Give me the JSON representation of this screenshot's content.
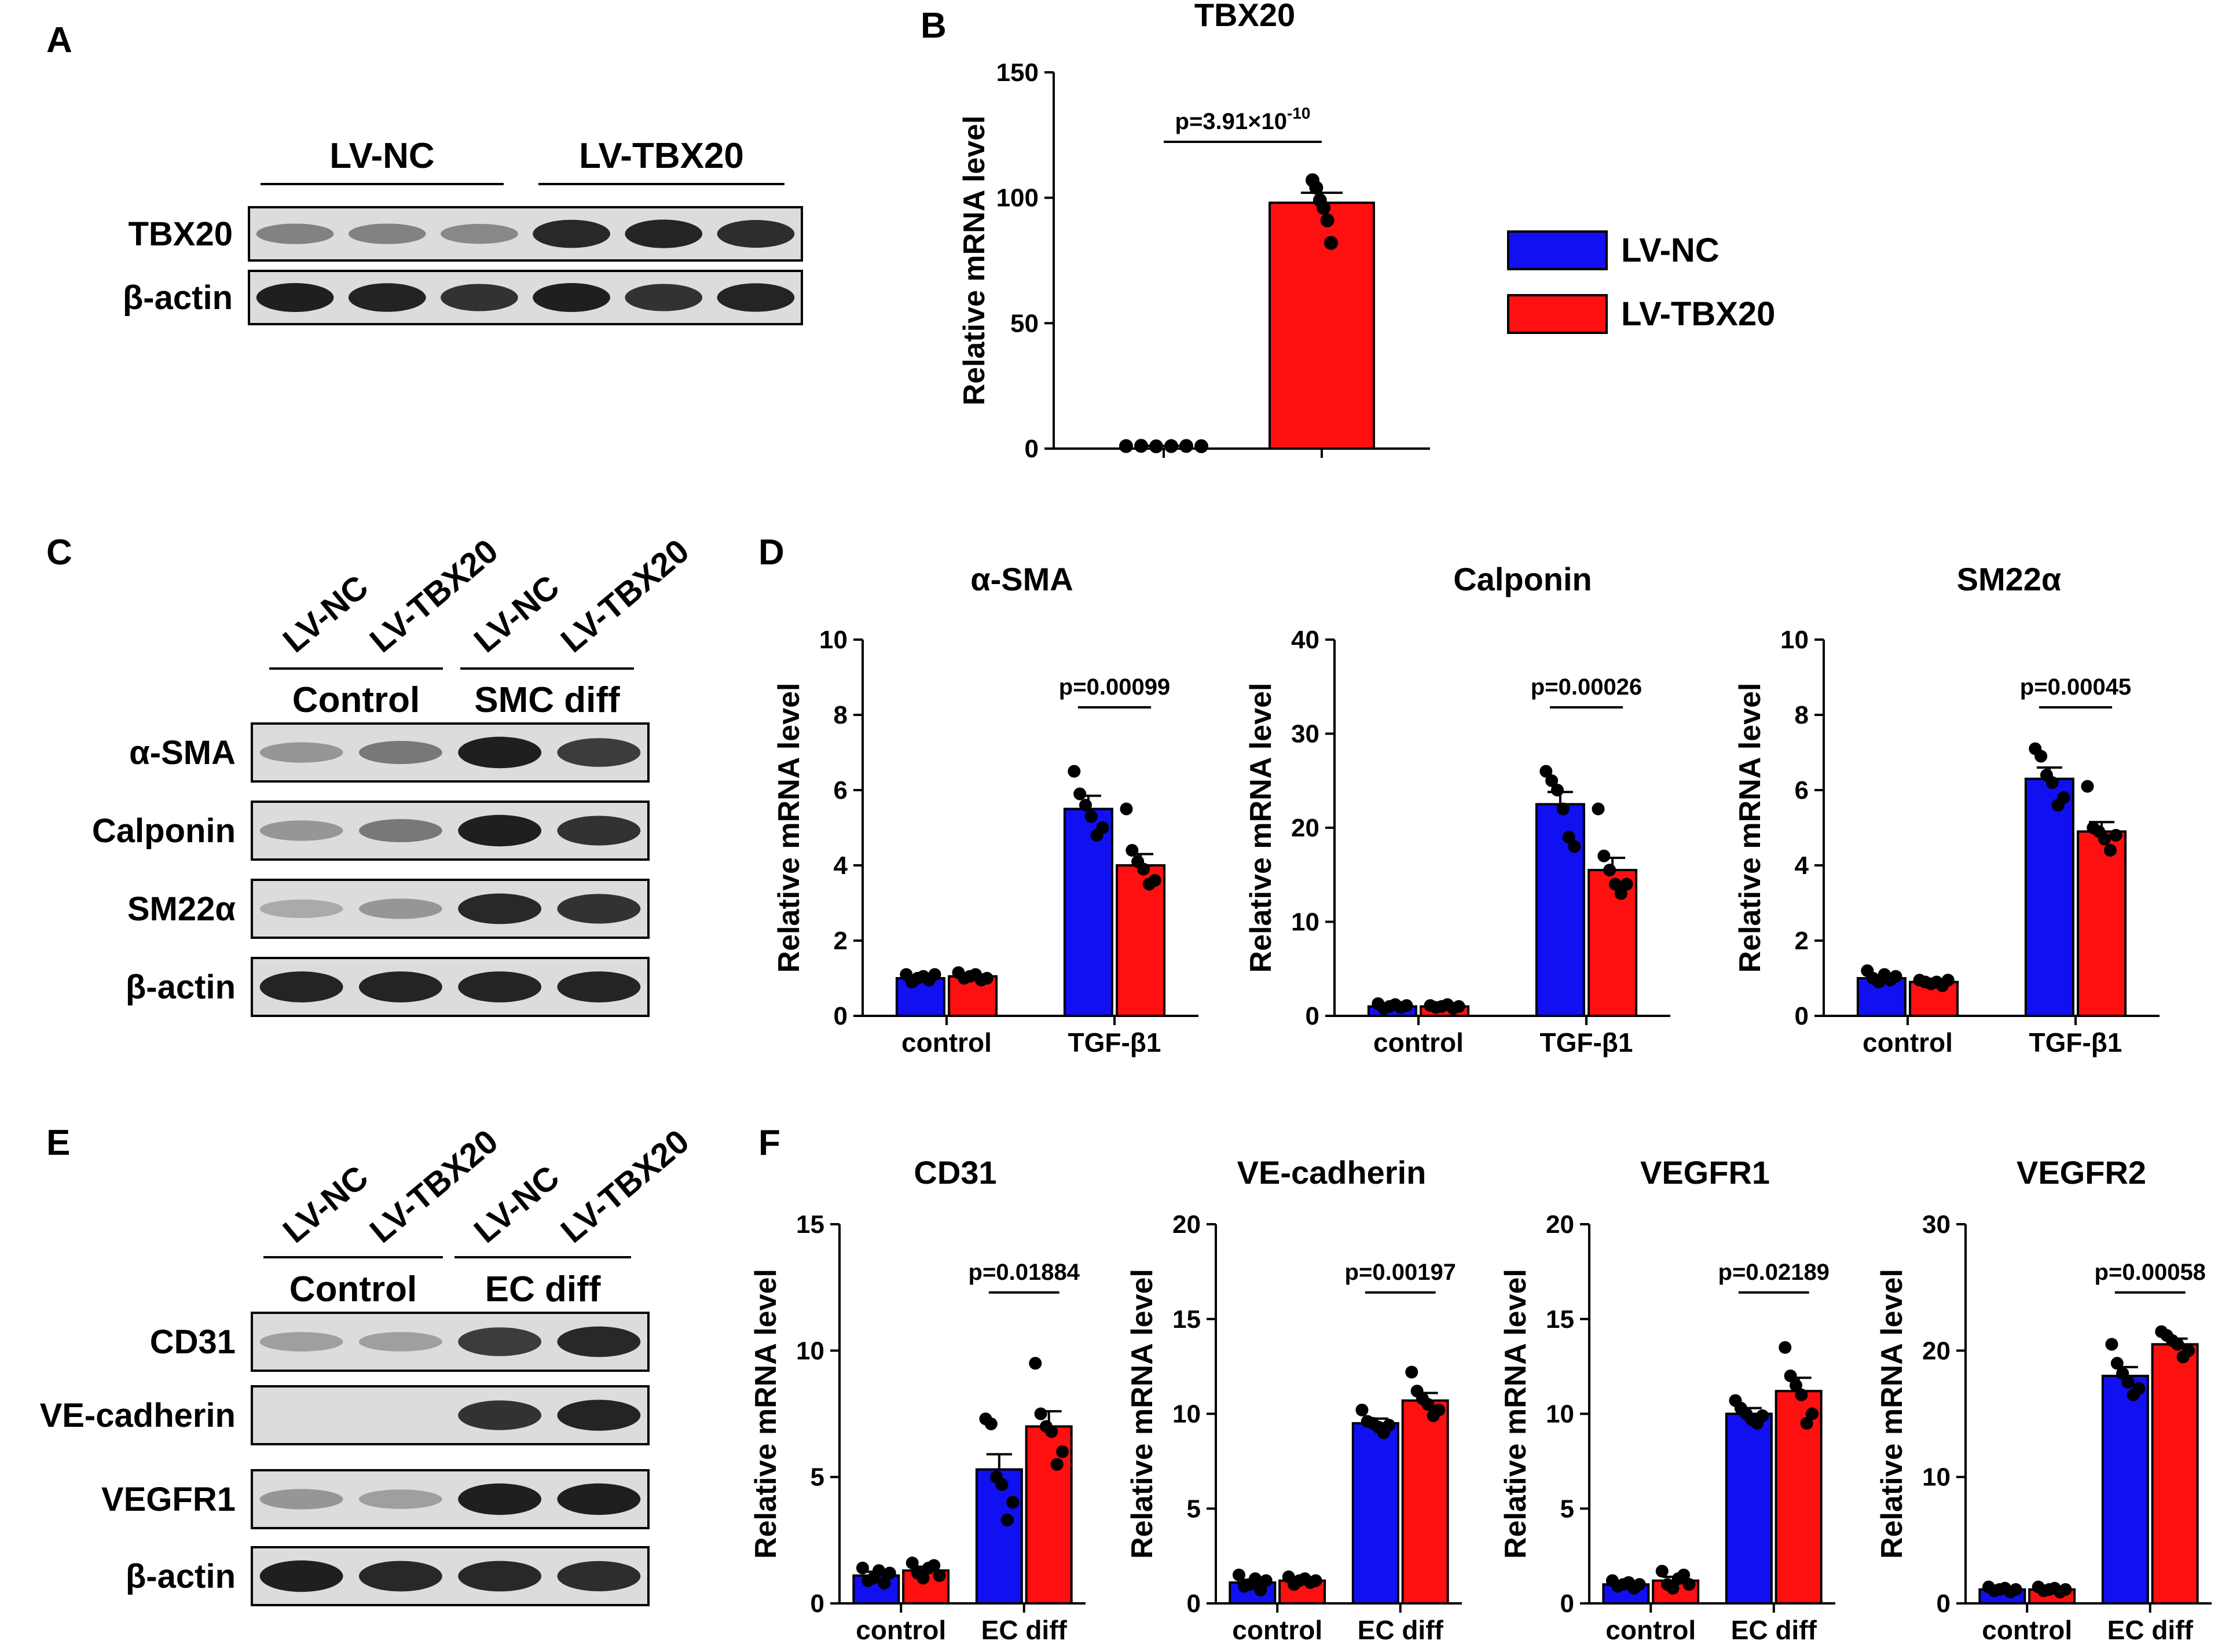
{
  "colors": {
    "lv_nc": "#1010F0",
    "lv_tbx20": "#FF1010",
    "band_dark": "#141414",
    "blot_bg": "#DCDCDC"
  },
  "panel_letters": [
    "A",
    "B",
    "C",
    "D",
    "E",
    "F"
  ],
  "legend": {
    "items": [
      {
        "label": "LV-NC",
        "color": "#1010F0"
      },
      {
        "label": "LV-TBX20",
        "color": "#FF1010"
      }
    ]
  },
  "panel_a": {
    "groups": [
      "LV-NC",
      "LV-TBX20"
    ],
    "rows": [
      {
        "label": "TBX20",
        "intensity": [
          0.45,
          0.45,
          0.42,
          0.9,
          0.92,
          0.88
        ]
      },
      {
        "label": "β-actin",
        "intensity": [
          0.95,
          0.93,
          0.85,
          0.95,
          0.85,
          0.92
        ]
      }
    ]
  },
  "panel_c": {
    "lanes": [
      "LV-NC",
      "LV-TBX20",
      "LV-NC",
      "LV-TBX20"
    ],
    "groups": [
      "Control",
      "SMC diff"
    ],
    "rows": [
      {
        "label": "α-SMA",
        "intensity": [
          0.35,
          0.5,
          0.95,
          0.8
        ]
      },
      {
        "label": "Calponin",
        "intensity": [
          0.35,
          0.5,
          0.95,
          0.85
        ]
      },
      {
        "label": "SM22α",
        "intensity": [
          0.25,
          0.35,
          0.9,
          0.85
        ]
      },
      {
        "label": "β-actin",
        "intensity": [
          0.92,
          0.92,
          0.92,
          0.92
        ]
      }
    ]
  },
  "panel_e": {
    "lanes": [
      "LV-NC",
      "LV-TBX20",
      "LV-NC",
      "LV-TBX20"
    ],
    "groups": [
      "Control",
      "EC diff"
    ],
    "rows": [
      {
        "label": "CD31",
        "intensity": [
          0.3,
          0.3,
          0.8,
          0.9
        ]
      },
      {
        "label": "VE-cadherin",
        "intensity": [
          0.0,
          0.0,
          0.85,
          0.92
        ]
      },
      {
        "label": "VEGFR1",
        "intensity": [
          0.35,
          0.3,
          0.95,
          0.95
        ]
      },
      {
        "label": "β-actin",
        "intensity": [
          0.95,
          0.9,
          0.9,
          0.88
        ]
      }
    ]
  },
  "chart_data": [
    {
      "panel": "B",
      "type": "bar",
      "title": "TBX20",
      "ylabel": "Relative mRNA level",
      "xlabel": "",
      "ylim": [
        0,
        150
      ],
      "yticks": [
        0,
        50,
        100,
        150
      ],
      "categories": [
        ""
      ],
      "series": [
        {
          "name": "LV-NC",
          "values": [
            1.0
          ],
          "sem": [
            0.1
          ],
          "points": [
            [
              1.0,
              1.1,
              0.9,
              1.0,
              1.05,
              0.95
            ]
          ]
        },
        {
          "name": "LV-TBX20",
          "values": [
            98
          ],
          "sem": [
            4
          ],
          "points": [
            [
              107,
              104,
              99,
              96,
              91,
              82
            ]
          ]
        }
      ],
      "annotations": [
        {
          "text": "p=3.91×10",
          "sup": "-10",
          "category": 0
        }
      ]
    },
    {
      "panel": "D",
      "type": "bar",
      "title": "α-SMA",
      "ylabel": "Relative mRNA level",
      "xlabel": "",
      "ylim": [
        0,
        10
      ],
      "yticks": [
        0,
        2,
        4,
        6,
        8,
        10
      ],
      "categories": [
        "control",
        "TGF-β1"
      ],
      "series": [
        {
          "name": "LV-NC",
          "values": [
            1.0,
            5.5
          ],
          "sem": [
            0.06,
            0.35
          ],
          "points": [
            [
              1.1,
              0.9,
              1.0,
              1.05,
              0.95,
              1.1
            ],
            [
              6.5,
              5.9,
              5.6,
              5.3,
              4.8,
              5.0
            ]
          ]
        },
        {
          "name": "LV-TBX20",
          "values": [
            1.05,
            4.0
          ],
          "sem": [
            0.05,
            0.3
          ],
          "points": [
            [
              1.15,
              1.0,
              1.05,
              1.1,
              0.95,
              1.0
            ],
            [
              5.5,
              4.4,
              4.1,
              3.9,
              3.5,
              3.6
            ]
          ]
        }
      ],
      "annotations": [
        {
          "text": "p=0.00099",
          "category": 1
        }
      ]
    },
    {
      "panel": "D",
      "type": "bar",
      "title": "Calponin",
      "ylabel": "Relative mRNA level",
      "xlabel": "",
      "ylim": [
        0,
        40
      ],
      "yticks": [
        0,
        10,
        20,
        30,
        40
      ],
      "categories": [
        "control",
        "TGF-β1"
      ],
      "series": [
        {
          "name": "LV-NC",
          "values": [
            1.0,
            22.5
          ],
          "sem": [
            0.15,
            1.3
          ],
          "points": [
            [
              1.3,
              0.8,
              1.0,
              1.2,
              0.9,
              1.1
            ],
            [
              26.0,
              25.0,
              24.0,
              22.0,
              19.0,
              18.0
            ]
          ]
        },
        {
          "name": "LV-TBX20",
          "values": [
            1.0,
            15.5
          ],
          "sem": [
            0.1,
            1.3
          ],
          "points": [
            [
              1.1,
              0.9,
              1.0,
              1.2,
              0.8,
              1.0
            ],
            [
              22.0,
              17.0,
              15.5,
              14.0,
              13.0,
              14.0
            ]
          ]
        }
      ],
      "annotations": [
        {
          "text": "p=0.00026",
          "category": 1
        }
      ]
    },
    {
      "panel": "D",
      "type": "bar",
      "title": "SM22α",
      "ylabel": "Relative mRNA level",
      "xlabel": "",
      "ylim": [
        0,
        10
      ],
      "yticks": [
        0,
        2,
        4,
        6,
        8,
        10
      ],
      "categories": [
        "control",
        "TGF-β1"
      ],
      "series": [
        {
          "name": "LV-NC",
          "values": [
            1.0,
            6.3
          ],
          "sem": [
            0.07,
            0.3
          ],
          "points": [
            [
              1.2,
              1.0,
              0.9,
              1.1,
              0.95,
              1.05
            ],
            [
              7.1,
              6.9,
              6.4,
              6.2,
              5.6,
              5.8
            ]
          ]
        },
        {
          "name": "LV-TBX20",
          "values": [
            0.9,
            4.9
          ],
          "sem": [
            0.04,
            0.25
          ],
          "points": [
            [
              0.95,
              0.9,
              0.85,
              0.9,
              0.8,
              0.95
            ],
            [
              6.1,
              5.0,
              4.9,
              4.7,
              4.4,
              4.8
            ]
          ]
        }
      ],
      "annotations": [
        {
          "text": "p=0.00045",
          "category": 1
        }
      ]
    },
    {
      "panel": "F",
      "type": "bar",
      "title": "CD31",
      "ylabel": "Relative mRNA level",
      "xlabel": "",
      "ylim": [
        0,
        15
      ],
      "yticks": [
        0,
        5,
        10,
        15
      ],
      "categories": [
        "control",
        "EC diff"
      ],
      "series": [
        {
          "name": "LV-NC",
          "values": [
            1.1,
            5.3
          ],
          "sem": [
            0.15,
            0.6
          ],
          "points": [
            [
              1.4,
              0.9,
              1.0,
              1.3,
              0.8,
              1.2
            ],
            [
              7.3,
              7.1,
              5.0,
              4.7,
              3.3,
              4.0
            ]
          ]
        },
        {
          "name": "LV-TBX20",
          "values": [
            1.3,
            7.0
          ],
          "sem": [
            0.15,
            0.6
          ],
          "points": [
            [
              1.6,
              1.2,
              1.0,
              1.4,
              1.5,
              1.1
            ],
            [
              9.5,
              7.5,
              7.0,
              6.8,
              5.5,
              6.0
            ]
          ]
        }
      ],
      "annotations": [
        {
          "text": "p=0.01884",
          "category": 1
        }
      ]
    },
    {
      "panel": "F",
      "type": "bar",
      "title": "VE-cadherin",
      "ylabel": "Relative mRNA level",
      "xlabel": "",
      "ylim": [
        0,
        20
      ],
      "yticks": [
        0,
        5,
        10,
        15,
        20
      ],
      "categories": [
        "control",
        "EC diff"
      ],
      "series": [
        {
          "name": "LV-NC",
          "values": [
            1.1,
            9.5
          ],
          "sem": [
            0.15,
            0.25
          ],
          "points": [
            [
              1.5,
              0.9,
              1.0,
              1.3,
              0.7,
              1.2
            ],
            [
              10.2,
              9.6,
              9.5,
              9.3,
              9.0,
              9.4
            ]
          ]
        },
        {
          "name": "LV-TBX20",
          "values": [
            1.2,
            10.7
          ],
          "sem": [
            0.1,
            0.4
          ],
          "points": [
            [
              1.4,
              1.0,
              1.2,
              1.3,
              1.1,
              1.2
            ],
            [
              12.2,
              11.2,
              10.8,
              10.5,
              9.9,
              10.2
            ]
          ]
        }
      ],
      "annotations": [
        {
          "text": "p=0.00197",
          "category": 1
        }
      ]
    },
    {
      "panel": "F",
      "type": "bar",
      "title": "VEGFR1",
      "ylabel": "Relative mRNA level",
      "xlabel": "",
      "ylim": [
        0,
        20
      ],
      "yticks": [
        0,
        5,
        10,
        15,
        20
      ],
      "categories": [
        "control",
        "EC diff"
      ],
      "series": [
        {
          "name": "LV-NC",
          "values": [
            1.0,
            10.0
          ],
          "sem": [
            0.1,
            0.3
          ],
          "points": [
            [
              1.2,
              0.9,
              1.0,
              1.1,
              0.8,
              1.0
            ],
            [
              10.7,
              10.3,
              10.0,
              9.7,
              9.5,
              9.9
            ]
          ]
        },
        {
          "name": "LV-TBX20",
          "values": [
            1.2,
            11.2
          ],
          "sem": [
            0.2,
            0.7
          ],
          "points": [
            [
              1.7,
              1.0,
              0.8,
              1.3,
              1.5,
              1.0
            ],
            [
              13.5,
              12.0,
              11.5,
              11.0,
              9.5,
              10.0
            ]
          ]
        }
      ],
      "annotations": [
        {
          "text": "p=0.02189",
          "category": 1
        }
      ]
    },
    {
      "panel": "F",
      "type": "bar",
      "title": "VEGFR2",
      "ylabel": "Relative mRNA level",
      "xlabel": "",
      "ylim": [
        0,
        30
      ],
      "yticks": [
        0,
        10,
        20,
        30
      ],
      "categories": [
        "control",
        "EC diff"
      ],
      "series": [
        {
          "name": "LV-NC",
          "values": [
            1.1,
            18.0
          ],
          "sem": [
            0.1,
            0.7
          ],
          "points": [
            [
              1.3,
              1.0,
              1.1,
              1.2,
              0.9,
              1.1
            ],
            [
              20.5,
              19.0,
              18.2,
              17.5,
              16.5,
              17.0
            ]
          ]
        },
        {
          "name": "LV-TBX20",
          "values": [
            1.1,
            20.5
          ],
          "sem": [
            0.1,
            0.45
          ],
          "points": [
            [
              1.3,
              1.0,
              1.1,
              1.2,
              0.9,
              1.1
            ],
            [
              21.5,
              21.2,
              20.8,
              20.5,
              19.5,
              20.0
            ]
          ]
        }
      ],
      "annotations": [
        {
          "text": "p=0.00058",
          "category": 1
        }
      ]
    }
  ]
}
